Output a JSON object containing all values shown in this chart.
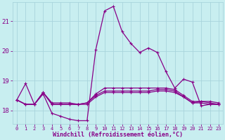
{
  "xlabel": "Windchill (Refroidissement éolien,°C)",
  "background_color": "#c8eef0",
  "grid_color": "#a8d4dc",
  "line_color": "#880088",
  "xlim": [
    -0.5,
    23.5
  ],
  "ylim": [
    17.55,
    21.65
  ],
  "yticks": [
    18,
    19,
    20,
    21
  ],
  "xticks": [
    0,
    1,
    2,
    3,
    4,
    5,
    6,
    7,
    8,
    9,
    10,
    11,
    12,
    13,
    14,
    15,
    16,
    17,
    18,
    19,
    20,
    21,
    22,
    23
  ],
  "series_main": [
    18.35,
    18.9,
    18.2,
    18.55,
    17.9,
    17.8,
    17.7,
    17.65,
    17.65,
    20.05,
    21.35,
    21.5,
    20.65,
    20.25,
    19.95,
    20.1,
    19.95,
    19.3,
    18.75,
    19.05,
    18.95,
    18.15,
    18.2,
    18.2
  ],
  "series_flat1": [
    18.35,
    18.2,
    18.2,
    18.6,
    18.25,
    18.25,
    18.25,
    18.2,
    18.2,
    18.45,
    18.6,
    18.6,
    18.6,
    18.6,
    18.6,
    18.6,
    18.65,
    18.65,
    18.6,
    18.45,
    18.25,
    18.3,
    18.3,
    18.25
  ],
  "series_flat2": [
    18.35,
    18.2,
    18.2,
    18.6,
    18.2,
    18.2,
    18.2,
    18.2,
    18.25,
    18.5,
    18.65,
    18.65,
    18.65,
    18.65,
    18.65,
    18.65,
    18.7,
    18.7,
    18.65,
    18.45,
    18.25,
    18.25,
    18.2,
    18.2
  ],
  "series_flat3": [
    18.35,
    18.2,
    18.2,
    18.6,
    18.2,
    18.2,
    18.2,
    18.2,
    18.25,
    18.55,
    18.75,
    18.75,
    18.75,
    18.75,
    18.75,
    18.75,
    18.75,
    18.75,
    18.7,
    18.5,
    18.3,
    18.3,
    18.25,
    18.2
  ],
  "marker": "+",
  "markersize": 3.5,
  "linewidth": 0.9,
  "tick_fontsize": 6.0,
  "xlabel_fontsize": 6.0
}
